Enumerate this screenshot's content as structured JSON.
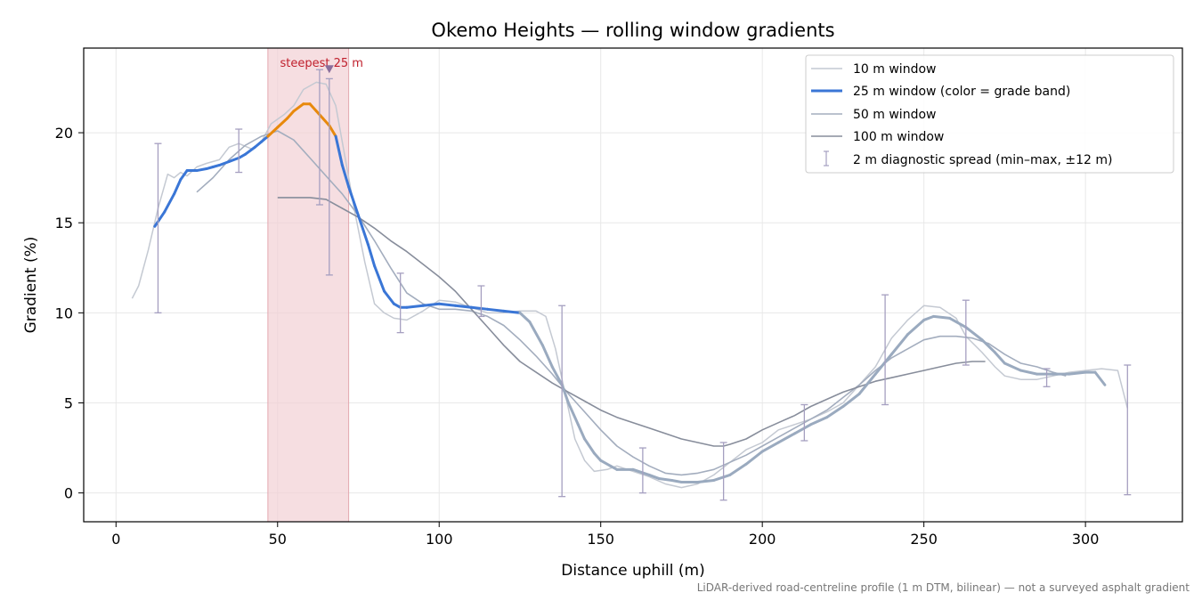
{
  "chart_data": {
    "type": "line",
    "title": "Okemo Heights — rolling window gradients",
    "xlabel": "Distance uphill (m)",
    "ylabel": "Gradient (%)",
    "xlim": [
      -10,
      330
    ],
    "ylim": [
      -1.6,
      24.7
    ],
    "xticks": [
      0,
      50,
      100,
      150,
      200,
      250,
      300
    ],
    "yticks": [
      0,
      5,
      10,
      15,
      20
    ],
    "grid": true,
    "legend_position": "top-right",
    "footnote": "LiDAR-derived road-centreline profile (1 m DTM, bilinear) — not a surveyed asphalt gradient",
    "highlight": {
      "label": "steepest 25 m",
      "x_start": 47,
      "x_end": 72,
      "marker_x": 66,
      "marker_y": 23.5,
      "color": "#f2d0d4"
    },
    "series": [
      {
        "name": "10 m window",
        "color": "#c4c9d2",
        "x": [
          5,
          7,
          10,
          13,
          16,
          18,
          20,
          22,
          25,
          28,
          32,
          35,
          38,
          42,
          45,
          48,
          52,
          55,
          58,
          62,
          65,
          68,
          71,
          74,
          77,
          80,
          83,
          86,
          90,
          95,
          100,
          105,
          110,
          115,
          120,
          125,
          130,
          133,
          136,
          139,
          142,
          145,
          148,
          152,
          155,
          160,
          165,
          170,
          175,
          180,
          185,
          190,
          195,
          200,
          205,
          210,
          215,
          220,
          225,
          230,
          235,
          240,
          245,
          250,
          255,
          260,
          263,
          268,
          272,
          275,
          280,
          285,
          290,
          295,
          300,
          305,
          310,
          313
        ],
        "y": [
          10.8,
          11.5,
          13.5,
          15.8,
          17.7,
          17.5,
          17.8,
          17.6,
          18.1,
          18.3,
          18.5,
          19.2,
          19.4,
          19.1,
          19.5,
          20.5,
          21.0,
          21.5,
          22.4,
          22.8,
          22.7,
          21.5,
          18.5,
          15.5,
          12.8,
          10.5,
          10.0,
          9.7,
          9.6,
          10.1,
          10.7,
          10.6,
          10.3,
          10.0,
          10.0,
          10.1,
          10.1,
          9.8,
          8.0,
          5.5,
          3.0,
          1.8,
          1.2,
          1.3,
          1.5,
          1.2,
          0.9,
          0.5,
          0.3,
          0.5,
          1.0,
          1.7,
          2.4,
          2.8,
          3.5,
          3.8,
          4.1,
          4.5,
          5.0,
          6.0,
          7.0,
          8.6,
          9.6,
          10.4,
          10.3,
          9.7,
          8.7,
          7.8,
          7.0,
          6.5,
          6.3,
          6.3,
          6.5,
          6.7,
          6.8,
          6.9,
          6.8,
          4.7
        ]
      },
      {
        "name": "25 m window (color = grade band)",
        "color": "#3a76d6",
        "band_colors": {
          "above_20": "#e8890c",
          "mid": "#3a76d6",
          "below_10": "#9aaabf"
        },
        "x": [
          12,
          15,
          18,
          20,
          22,
          25,
          28,
          30,
          32,
          35,
          38,
          40,
          43,
          45,
          47,
          50,
          53,
          55,
          58,
          60,
          62,
          64,
          66,
          68,
          70,
          72,
          75,
          78,
          80,
          83,
          86,
          88,
          90,
          95,
          100,
          105,
          110,
          115,
          120,
          125,
          128,
          132,
          135,
          138,
          140,
          143,
          145,
          148,
          150,
          153,
          155,
          160,
          165,
          168,
          172,
          175,
          180,
          185,
          190,
          195,
          200,
          205,
          210,
          215,
          220,
          225,
          230,
          235,
          240,
          245,
          250,
          253,
          258,
          263,
          268,
          272,
          275,
          280,
          285,
          290,
          295,
          300,
          303,
          306
        ],
        "y": [
          14.8,
          15.6,
          16.6,
          17.4,
          17.9,
          17.9,
          18.0,
          18.1,
          18.2,
          18.4,
          18.6,
          18.8,
          19.2,
          19.5,
          19.8,
          20.3,
          20.8,
          21.2,
          21.6,
          21.6,
          21.2,
          20.8,
          20.4,
          19.8,
          18.2,
          17.0,
          15.4,
          13.8,
          12.6,
          11.2,
          10.5,
          10.3,
          10.3,
          10.4,
          10.5,
          10.4,
          10.3,
          10.2,
          10.1,
          10.0,
          9.5,
          8.2,
          7.0,
          6.0,
          5.0,
          3.8,
          3.0,
          2.2,
          1.8,
          1.5,
          1.3,
          1.3,
          1.0,
          0.8,
          0.7,
          0.6,
          0.6,
          0.7,
          1.0,
          1.6,
          2.3,
          2.8,
          3.3,
          3.8,
          4.2,
          4.8,
          5.5,
          6.6,
          7.7,
          8.8,
          9.6,
          9.8,
          9.7,
          9.2,
          8.5,
          7.8,
          7.2,
          6.8,
          6.6,
          6.6,
          6.6,
          6.7,
          6.7,
          6.0
        ]
      },
      {
        "name": "50 m window",
        "color": "#a3adbe",
        "x": [
          25,
          30,
          35,
          40,
          45,
          50,
          55,
          60,
          65,
          70,
          75,
          80,
          85,
          90,
          95,
          100,
          105,
          110,
          115,
          120,
          125,
          130,
          135,
          140,
          145,
          150,
          155,
          160,
          165,
          170,
          175,
          180,
          185,
          190,
          195,
          200,
          205,
          210,
          215,
          220,
          225,
          230,
          235,
          240,
          245,
          250,
          255,
          260,
          265,
          270,
          275,
          280,
          285,
          290,
          294
        ],
        "y": [
          16.7,
          17.5,
          18.5,
          19.3,
          19.8,
          20.1,
          19.6,
          18.6,
          17.6,
          16.6,
          15.4,
          14.0,
          12.5,
          11.1,
          10.5,
          10.2,
          10.2,
          10.1,
          9.8,
          9.3,
          8.5,
          7.6,
          6.6,
          5.5,
          4.5,
          3.5,
          2.6,
          2.0,
          1.5,
          1.1,
          1.0,
          1.1,
          1.3,
          1.7,
          2.1,
          2.6,
          3.1,
          3.6,
          4.1,
          4.6,
          5.3,
          6.0,
          6.8,
          7.5,
          8.0,
          8.5,
          8.7,
          8.7,
          8.6,
          8.3,
          7.7,
          7.2,
          7.0,
          6.7,
          6.5
        ]
      },
      {
        "name": "100 m window",
        "color": "#878d9b",
        "x": [
          50,
          55,
          60,
          65,
          70,
          75,
          80,
          85,
          90,
          95,
          100,
          105,
          110,
          115,
          120,
          125,
          130,
          135,
          140,
          145,
          150,
          155,
          160,
          165,
          170,
          175,
          180,
          185,
          188,
          190,
          195,
          200,
          205,
          210,
          215,
          220,
          225,
          230,
          235,
          240,
          245,
          250,
          255,
          260,
          265,
          269
        ],
        "y": [
          16.4,
          16.4,
          16.4,
          16.3,
          15.8,
          15.3,
          14.7,
          14.0,
          13.4,
          12.7,
          12.0,
          11.2,
          10.2,
          9.2,
          8.2,
          7.3,
          6.7,
          6.1,
          5.6,
          5.1,
          4.6,
          4.2,
          3.9,
          3.6,
          3.3,
          3.0,
          2.8,
          2.6,
          2.6,
          2.7,
          3.0,
          3.5,
          3.9,
          4.3,
          4.8,
          5.2,
          5.6,
          5.9,
          6.2,
          6.4,
          6.6,
          6.8,
          7.0,
          7.2,
          7.3,
          7.3
        ]
      }
    ],
    "error_bars": {
      "name": "2 m diagnostic spread (min–max, ±12 m)",
      "color": "#a59fc0",
      "points": [
        {
          "x": 13,
          "low": 10.0,
          "high": 19.4
        },
        {
          "x": 38,
          "low": 17.8,
          "high": 20.2
        },
        {
          "x": 63,
          "low": 16.0,
          "high": 23.5
        },
        {
          "x": 66,
          "low": 12.1,
          "high": 23.0
        },
        {
          "x": 88,
          "low": 8.9,
          "high": 12.2
        },
        {
          "x": 113,
          "low": 9.8,
          "high": 11.5
        },
        {
          "x": 138,
          "low": -0.2,
          "high": 10.4
        },
        {
          "x": 163,
          "low": 0.0,
          "high": 2.5
        },
        {
          "x": 188,
          "low": -0.4,
          "high": 2.8
        },
        {
          "x": 213,
          "low": 2.9,
          "high": 4.9
        },
        {
          "x": 238,
          "low": 4.9,
          "high": 11.0
        },
        {
          "x": 263,
          "low": 7.1,
          "high": 10.7
        },
        {
          "x": 288,
          "low": 5.9,
          "high": 6.9
        },
        {
          "x": 313,
          "low": -0.1,
          "high": 7.1
        }
      ]
    }
  }
}
